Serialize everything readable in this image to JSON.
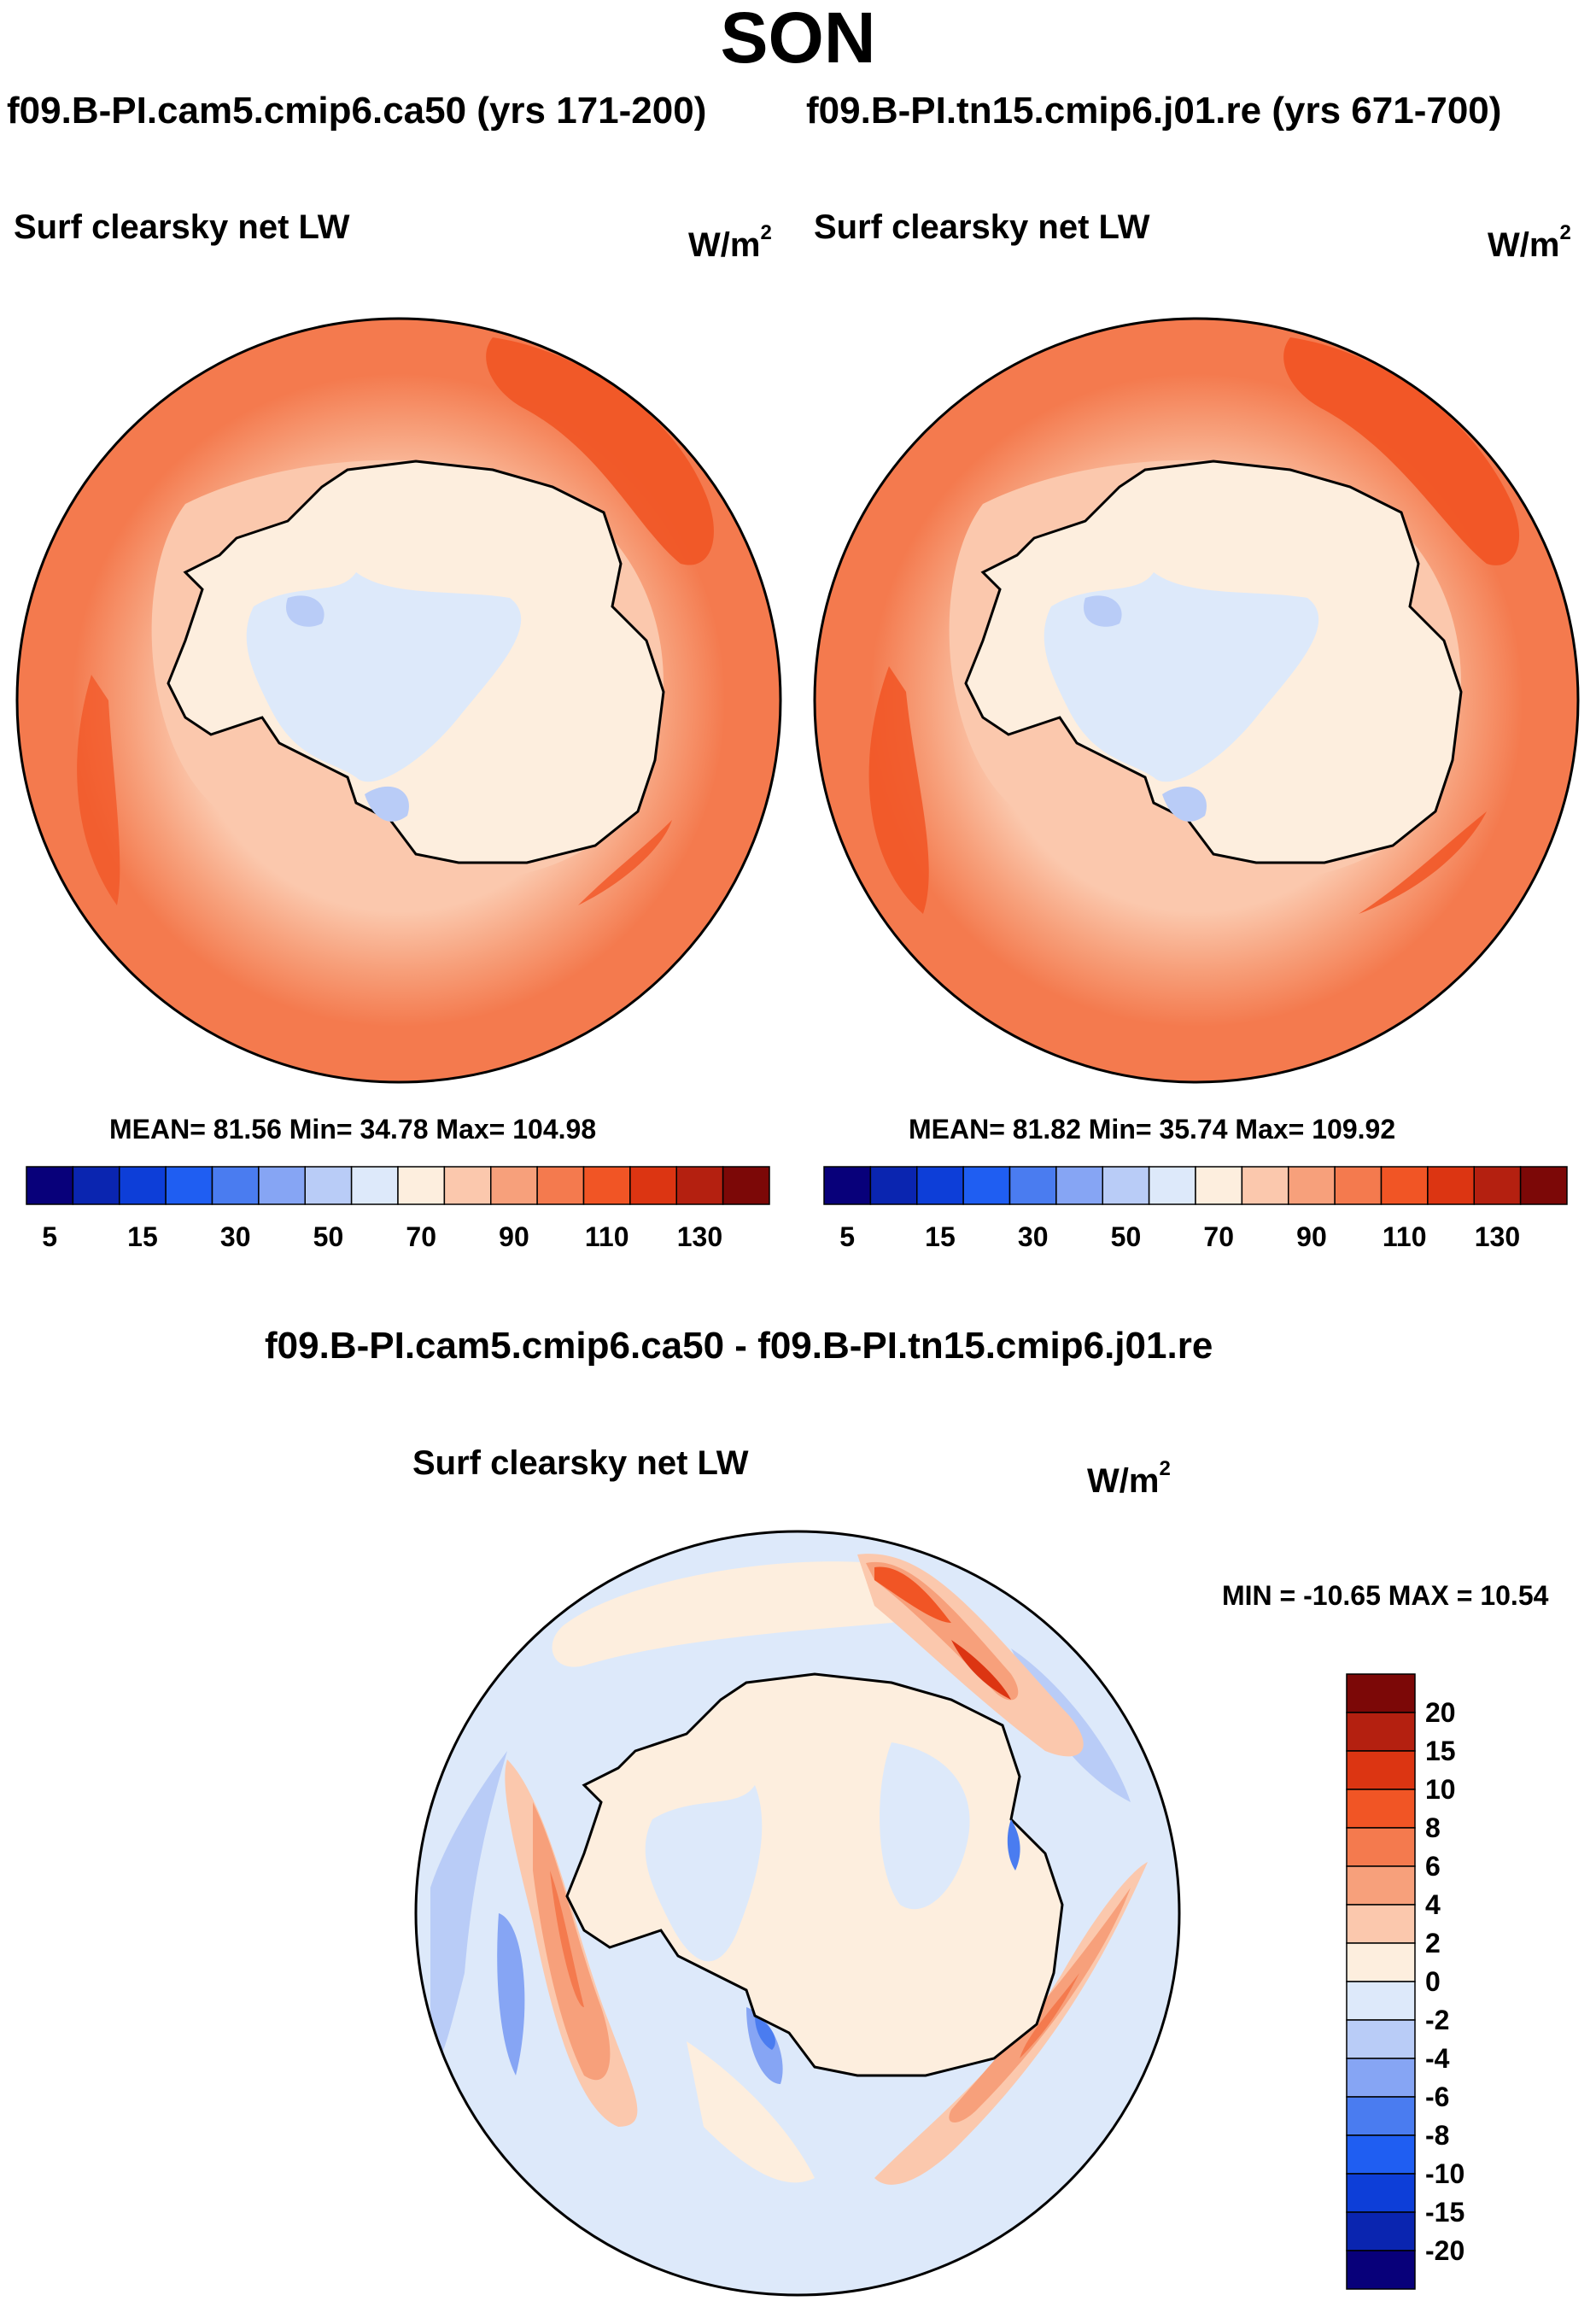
{
  "header": {
    "season": "SON",
    "left_case": "f09.B-PI.cam5.cmip6.ca50 (yrs 171-200)",
    "right_case": "f09.B-PI.tn15.cmip6.j01.re (yrs 671-700)",
    "diff_case": "f09.B-PI.cam5.cmip6.ca50 - f09.B-PI.tn15.cmip6.j01.re"
  },
  "panels": {
    "left": {
      "variable": "Surf clearsky net LW",
      "units": "W/m",
      "units_exp": "2",
      "stats": "MEAN=  81.56  Min=  34.78  Max= 104.98"
    },
    "right": {
      "variable": "Surf clearsky net LW",
      "units": "W/m",
      "units_exp": "2",
      "stats": "MEAN=  81.82  Min=  35.74  Max= 109.92"
    },
    "diff": {
      "variable": "Surf clearsky net LW",
      "units": "W/m",
      "units_exp": "2",
      "stats": "MIN = -10.65 MAX =  10.54"
    }
  },
  "colorbar_main": {
    "colors": [
      "#08007a",
      "#0a25b0",
      "#0d3ed8",
      "#1f5ef2",
      "#4a7cf0",
      "#86a5f4",
      "#b9ccf7",
      "#dde9fa",
      "#fdeede",
      "#fbc8ad",
      "#f7a07b",
      "#f47a4e",
      "#f15525",
      "#dc3512",
      "#b42010",
      "#7c0807"
    ],
    "tick_labels": [
      "5",
      "15",
      "30",
      "50",
      "70",
      "90",
      "110",
      "130"
    ],
    "tick_after_box": [
      1,
      3,
      5,
      7,
      9,
      11,
      13,
      15
    ]
  },
  "colorbar_diff": {
    "colors_top_to_bottom": [
      "#7c0807",
      "#b42010",
      "#dc3512",
      "#f15525",
      "#f47a4e",
      "#f7a07b",
      "#fbc8ad",
      "#fdeede",
      "#dde9fa",
      "#b9ccf7",
      "#86a5f4",
      "#4a7cf0",
      "#1f5ef2",
      "#0d3ed8",
      "#0a25b0",
      "#08007a"
    ],
    "tick_labels": [
      "20",
      "15",
      "10",
      "8",
      "6",
      "4",
      "2",
      "0",
      "-2",
      "-4",
      "-6",
      "-8",
      "-10",
      "-15",
      "-20"
    ]
  },
  "chart_data": [
    {
      "type": "heatmap",
      "projection": "south-polar-stereographic",
      "title": "Surf clearsky net LW",
      "case": "f09.B-PI.cam5.cmip6.ca50 (yrs 171-200)",
      "units": "W/m^2",
      "mean": 81.56,
      "min": 34.78,
      "max": 104.98,
      "contour_levels": [
        5,
        10,
        15,
        20,
        30,
        40,
        50,
        60,
        70,
        80,
        90,
        100,
        110,
        120,
        130
      ]
    },
    {
      "type": "heatmap",
      "projection": "south-polar-stereographic",
      "title": "Surf clearsky net LW",
      "case": "f09.B-PI.tn15.cmip6.j01.re (yrs 671-700)",
      "units": "W/m^2",
      "mean": 81.82,
      "min": 35.74,
      "max": 109.92,
      "contour_levels": [
        5,
        10,
        15,
        20,
        30,
        40,
        50,
        60,
        70,
        80,
        90,
        100,
        110,
        120,
        130
      ]
    },
    {
      "type": "heatmap",
      "projection": "south-polar-stereographic",
      "title": "Surf clearsky net LW",
      "case": "f09.B-PI.cam5.cmip6.ca50 - f09.B-PI.tn15.cmip6.j01.re",
      "units": "W/m^2",
      "min": -10.65,
      "max": 10.54,
      "contour_levels": [
        -20,
        -15,
        -10,
        -8,
        -6,
        -4,
        -2,
        0,
        2,
        4,
        6,
        8,
        10,
        15,
        20
      ]
    }
  ]
}
